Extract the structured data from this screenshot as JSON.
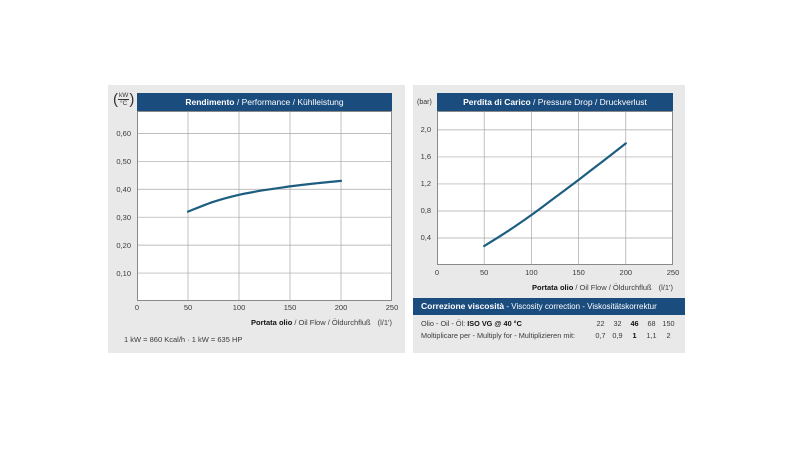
{
  "colors": {
    "panel_bg": "#e9e9e9",
    "header_bg": "#1a4c7e",
    "header_text": "#ffffff",
    "curve": "#1c5e80",
    "grid": "#a7a7a7",
    "plot_border": "#8a8a8a",
    "text": "#3b3b3b"
  },
  "chart_data": [
    {
      "type": "line",
      "title_bold": "Rendimento",
      "title_rest": " / Performance / Kühlleistung",
      "unit_open": "(",
      "unit_top": "kW",
      "unit_bottom": "°C",
      "unit_close": ")",
      "xlabel_bold": "Portata olio",
      "xlabel_rest": " / Oil Flow / Öldurchfluß",
      "xlabel_unit": "(l/1')",
      "xlim": [
        0,
        250
      ],
      "ylim": [
        0,
        0.68
      ],
      "xticks": [
        0,
        50,
        100,
        150,
        200,
        250
      ],
      "xtick_labels": [
        "0",
        "50",
        "100",
        "150",
        "200",
        "250"
      ],
      "yticks": [
        0.1,
        0.2,
        0.3,
        0.4,
        0.5,
        0.6
      ],
      "ytick_labels": [
        "0,10",
        "0,20",
        "0,30",
        "0,40",
        "0,50",
        "0,60"
      ],
      "x": [
        50,
        75,
        100,
        125,
        150,
        175,
        200
      ],
      "y": [
        0.32,
        0.355,
        0.38,
        0.397,
        0.41,
        0.421,
        0.43
      ],
      "footnote": "1 kW = 860 Kcal/h · 1 kW = 635 HP",
      "grid": "on",
      "legend": "none"
    },
    {
      "type": "line",
      "title_bold": "Perdita di Carico",
      "title_rest": " / Pressure Drop / Druckverlust",
      "unit": "(bar)",
      "xlabel_bold": "Portata olio",
      "xlabel_rest": " / Oil Flow / Öldurchfluß",
      "xlabel_unit": "(l/1')",
      "xlim": [
        0,
        250
      ],
      "ylim": [
        0,
        2.28
      ],
      "xticks": [
        0,
        50,
        100,
        150,
        200,
        250
      ],
      "xtick_labels": [
        "0",
        "50",
        "100",
        "150",
        "200",
        "250"
      ],
      "yticks": [
        0.4,
        0.8,
        1.2,
        1.6,
        2.0
      ],
      "ytick_labels": [
        "0,4",
        "0,8",
        "1,2",
        "1,6",
        "2,0"
      ],
      "x": [
        50,
        75,
        100,
        125,
        150,
        175,
        200
      ],
      "y": [
        0.28,
        0.5,
        0.74,
        1.0,
        1.26,
        1.53,
        1.8
      ],
      "grid": "on",
      "legend": "none"
    }
  ],
  "viscosity_table": {
    "title_bold": "Correzione viscosità",
    "title_rest": " - Viscosity correction - Viskositätskorrektur",
    "row1_label": "Olio - Oil - Öl: ",
    "row1_label_bold": "ISO VG @ 40 °C",
    "row1_values": [
      "22",
      "32",
      "46",
      "68",
      "150"
    ],
    "row2_label": "Moltiplicare per - Multiply for - Multiplizieren mit:",
    "row2_values": [
      "0,7",
      "0,9",
      "1",
      "1,1",
      "2"
    ]
  }
}
